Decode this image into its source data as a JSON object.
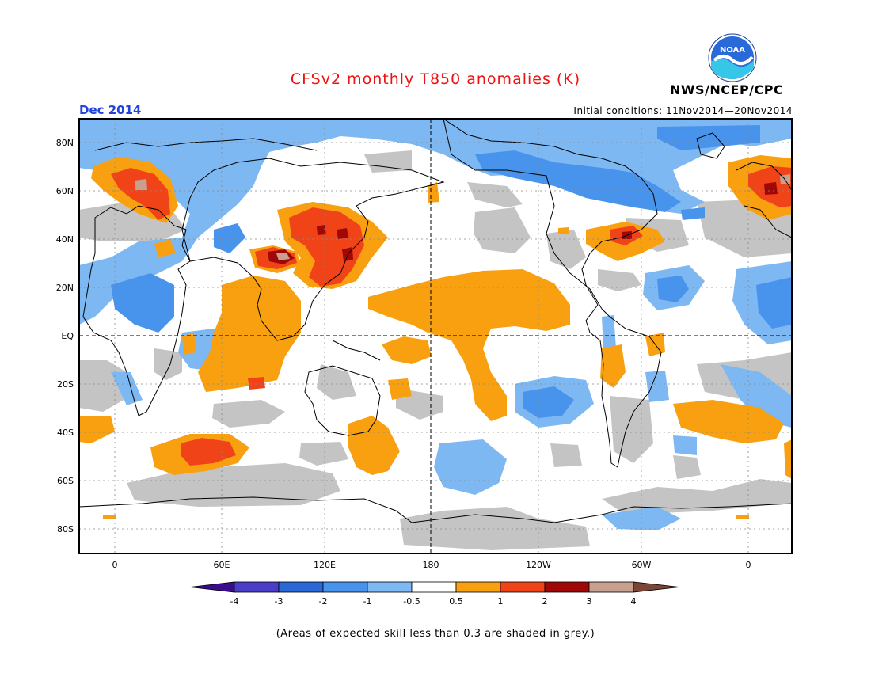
{
  "header": {
    "title": "CFSv2 monthly T850 anomalies (K)",
    "org": "NWS/NCEP/CPC",
    "month": "Dec 2014",
    "initial_conditions": "Initial conditions: 11Nov2014—20Nov2014",
    "logo_text": "NOAA"
  },
  "map": {
    "lat_labels": [
      "80N",
      "60N",
      "40N",
      "20N",
      "EQ",
      "20S",
      "40S",
      "60S",
      "80S"
    ],
    "lon_labels": [
      "0",
      "60E",
      "120E",
      "180",
      "120W",
      "60W",
      "0"
    ]
  },
  "colorbar": {
    "labels": [
      "-4",
      "-3",
      "-2",
      "-1",
      "-0.5",
      "0.5",
      "1",
      "2",
      "3",
      "4"
    ],
    "colors": [
      "#3a0e8a",
      "#4a3ec8",
      "#2a68d8",
      "#4894ec",
      "#7eb8f2",
      "#ffffff",
      "#f8a010",
      "#f04418",
      "#a00808",
      "#c8a090",
      "#7a4636"
    ]
  },
  "footnote": "(Areas of expected skill less than 0.3 are shaded in grey.)"
}
